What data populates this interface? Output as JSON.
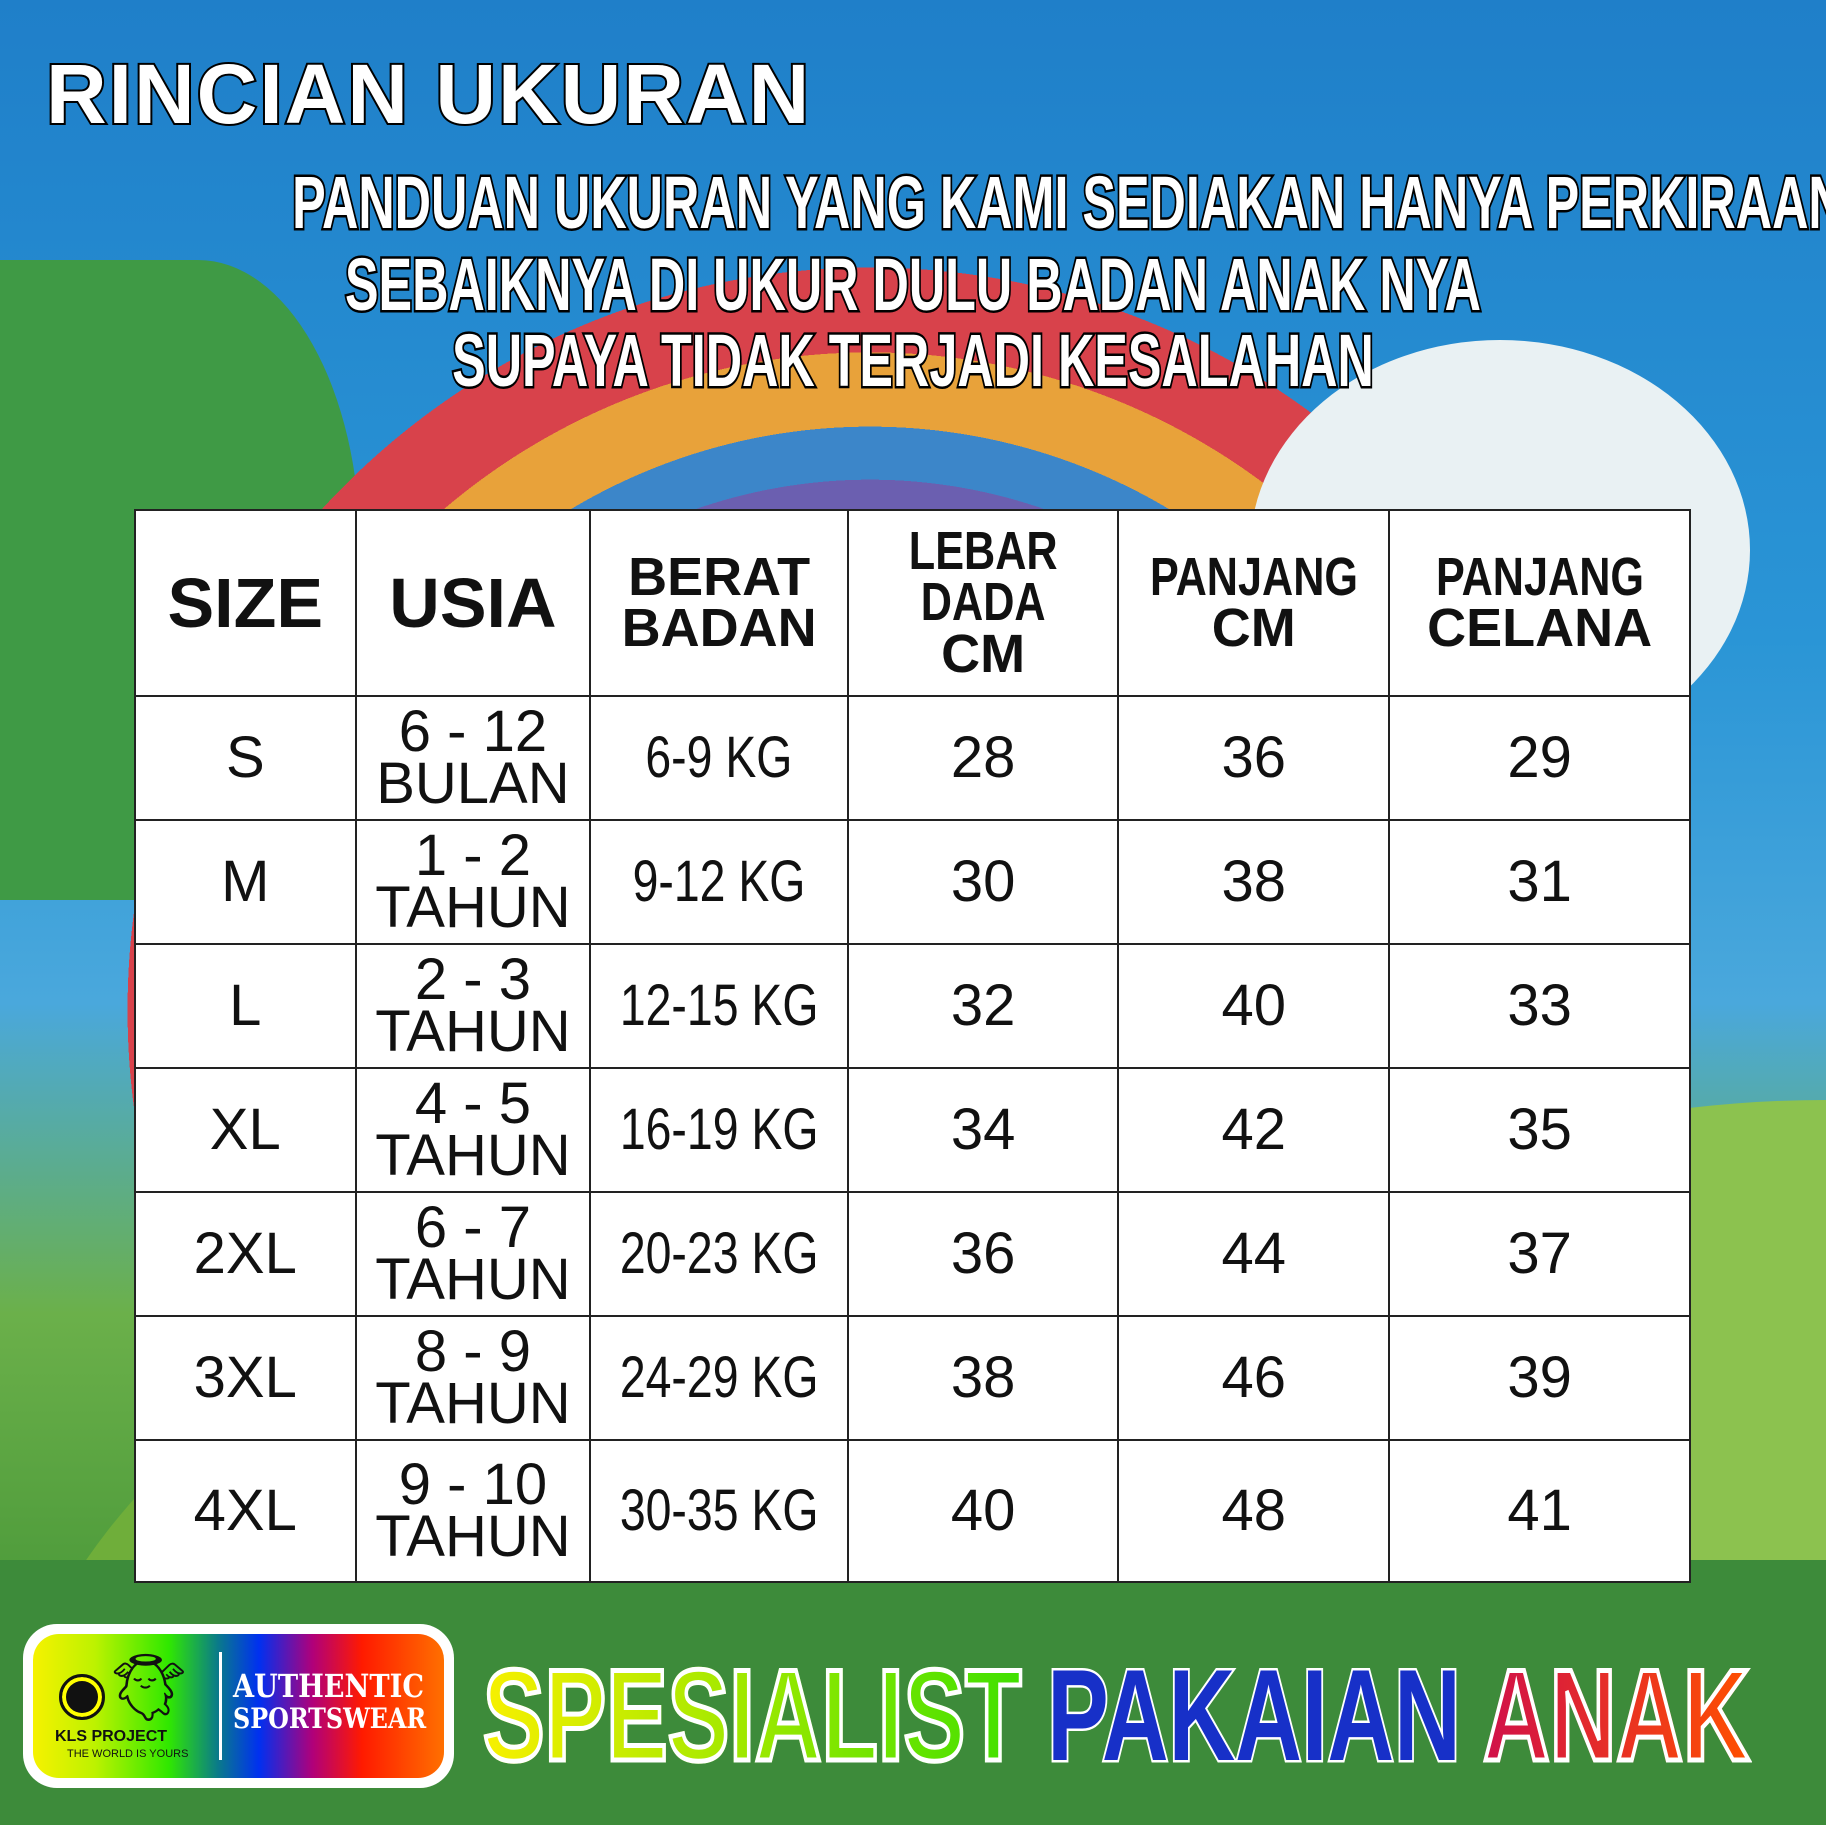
{
  "title": "RINCIAN UKURAN",
  "subtitle": [
    "PANDUAN UKURAN YANG KAMI SEDIAKAN HANYA PERKIRAAN",
    "SEBAIKNYA DI UKUR DULU BADAN ANAK NYA",
    "SUPAYA TIDAK TERJADI KESALAHAN"
  ],
  "table": {
    "headers": [
      [
        "SIZE"
      ],
      [
        "USIA"
      ],
      [
        "BERAT",
        "BADAN"
      ],
      [
        "LEBAR DADA",
        "CM"
      ],
      [
        "PANJANG",
        "CM"
      ],
      [
        "PANJANG",
        "CELANA"
      ]
    ],
    "rows": [
      {
        "size": "S",
        "usia": [
          "6 - 12",
          "BULAN"
        ],
        "berat": "6-9 KG",
        "dada": "28",
        "panjang": "36",
        "celana": "29"
      },
      {
        "size": "M",
        "usia": [
          "1 - 2",
          "TAHUN"
        ],
        "berat": "9-12 KG",
        "dada": "30",
        "panjang": "38",
        "celana": "31"
      },
      {
        "size": "L",
        "usia": [
          "2 - 3",
          "TAHUN"
        ],
        "berat": "12-15 KG",
        "dada": "32",
        "panjang": "40",
        "celana": "33"
      },
      {
        "size": "XL",
        "usia": [
          "4 - 5",
          "TAHUN"
        ],
        "berat": "16-19 KG",
        "dada": "34",
        "panjang": "42",
        "celana": "35"
      },
      {
        "size": "2XL",
        "usia": [
          "6 - 7",
          "TAHUN"
        ],
        "berat": "20-23 KG",
        "dada": "36",
        "panjang": "44",
        "celana": "37"
      },
      {
        "size": "3XL",
        "usia": [
          "8 - 9",
          "TAHUN"
        ],
        "berat": "24-29 KG",
        "dada": "38",
        "panjang": "46",
        "celana": "39"
      },
      {
        "size": "4XL",
        "usia": [
          "9 - 10",
          "TAHUN"
        ],
        "berat": "30-35 KG",
        "dada": "40",
        "panjang": "48",
        "celana": "41"
      }
    ]
  },
  "logo": {
    "brand": "KLS PROJECT",
    "tagline": "THE WORLD IS YOURS",
    "line1": "AUTHENTIC",
    "line2": "SPORTSWEAR",
    "icons": [
      "globe-icon",
      "angel-icon"
    ]
  },
  "slogan": [
    "SPESIALIST",
    "PAKAIAN",
    "ANAK"
  ]
}
